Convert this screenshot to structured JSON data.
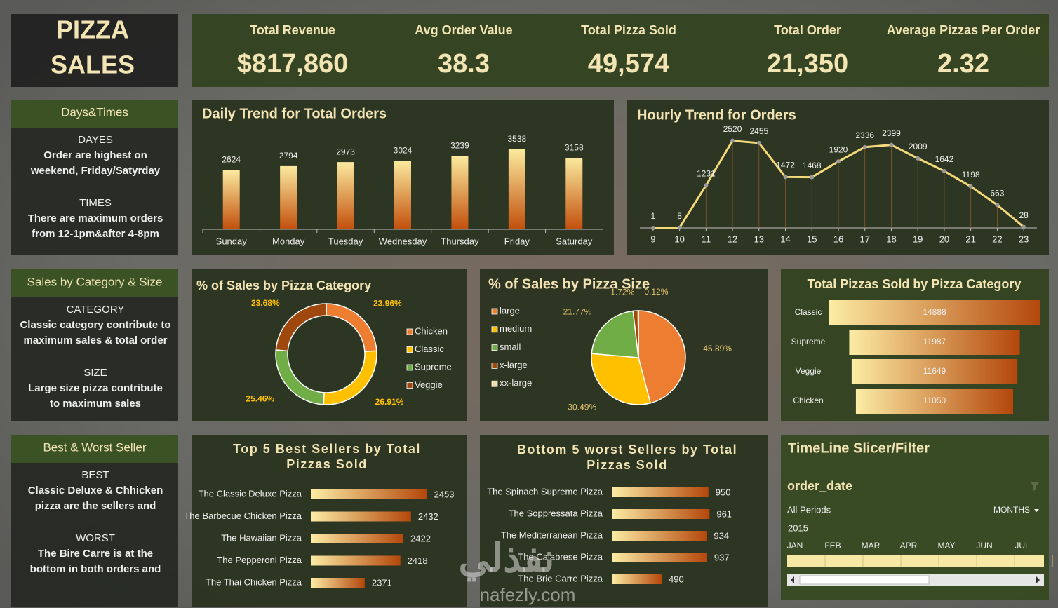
{
  "header": {
    "title_lines": [
      "PIZZA",
      "SALES"
    ]
  },
  "kpis": [
    {
      "label": "Total Revenue",
      "value": "$817,860"
    },
    {
      "label": "Avg Order Value",
      "value": "38.3"
    },
    {
      "label": "Total Pizza Sold",
      "value": "49,574"
    },
    {
      "label": "Total Order",
      "value": "21,350"
    },
    {
      "label": "Average Pizzas Per Order",
      "value": "2.32"
    }
  ],
  "insights": [
    {
      "title": "Days&Times",
      "sections": [
        {
          "heading": "DAYES",
          "lines": [
            "Order are highest on",
            "weekend, Friday/Satyrday"
          ]
        },
        {
          "heading": "TIMES",
          "lines": [
            "There are maximum orders",
            "from 12-1pm&after 4-8pm"
          ]
        }
      ]
    },
    {
      "title": "Sales by Category & Size",
      "sections": [
        {
          "heading": "CATEGORY",
          "lines": [
            "Classic category contribute to",
            "maximum sales & total order"
          ]
        },
        {
          "heading": "SIZE",
          "lines": [
            "Large size pizza contribute",
            "to maximum sales"
          ]
        }
      ]
    },
    {
      "title": "Best & Worst Seller",
      "sections": [
        {
          "heading": "BEST",
          "lines": [
            "Classic Deluxe & Chhicken",
            "pizza are the sellers and"
          ]
        },
        {
          "heading": "WORST",
          "lines": [
            "The Bire Carre is at the",
            "bottom in both orders and"
          ]
        }
      ]
    }
  ],
  "timeline": {
    "title": "TimeLine Slicer/Filter",
    "field": "order_date",
    "period": "All Periods",
    "level": "MONTHS",
    "year": "2015",
    "months": [
      "JAN",
      "FEB",
      "MAR",
      "APR",
      "MAY",
      "JUN",
      "JUL"
    ]
  },
  "watermark": {
    "brand": "نفذلي",
    "site": "nafezly.com"
  },
  "chart_data": [
    {
      "type": "bar",
      "title": "Daily Trend for Total Orders",
      "categories": [
        "Sunday",
        "Monday",
        "Tuesday",
        "Wednesday",
        "Thursday",
        "Friday",
        "Saturday"
      ],
      "values": [
        2624,
        2794,
        2973,
        3024,
        3239,
        3538,
        3158
      ],
      "ylim": [
        0,
        4000
      ],
      "gradient": [
        "#fbea9e",
        "#c24f0c"
      ]
    },
    {
      "type": "line",
      "title": "Hourly Trend for Orders",
      "x": [
        9,
        10,
        11,
        12,
        13,
        14,
        15,
        16,
        17,
        18,
        19,
        20,
        21,
        22,
        23
      ],
      "values": [
        1,
        8,
        1231,
        2520,
        2455,
        1472,
        1468,
        1920,
        2336,
        2399,
        2009,
        1642,
        1198,
        663,
        28
      ],
      "xlim": [
        8.5,
        23.5
      ],
      "xticks": [
        9,
        10,
        11,
        12,
        13,
        14,
        15,
        16,
        17,
        18,
        19,
        20,
        21,
        22,
        23
      ],
      "ylim": [
        0,
        3000
      ],
      "color": "#f4d97a"
    },
    {
      "type": "donut",
      "title": "% of Sales by Pizza Category",
      "categories": [
        "Chicken",
        "Classic",
        "Supreme",
        "Veggie"
      ],
      "values": [
        23.96,
        26.91,
        25.46,
        23.68
      ],
      "value_labels": [
        "23.96%",
        "26.91%",
        "25.46%",
        "23.68%"
      ],
      "colors": [
        "#ed7d31",
        "#ffc000",
        "#70ad47",
        "#9e480e"
      ]
    },
    {
      "type": "pie",
      "title": "% of Sales by Pizza Size",
      "categories": [
        "large",
        "medium",
        "small",
        "x-large",
        "xx-large"
      ],
      "values": [
        45.89,
        30.49,
        21.77,
        1.72,
        0.12
      ],
      "value_labels": [
        "45.89%",
        "30.49%",
        "21.77%",
        "1.72%",
        "0.12%"
      ],
      "colors": [
        "#ed7d31",
        "#ffc000",
        "#70ad47",
        "#9e480e",
        "#f2e0a8"
      ]
    },
    {
      "type": "funnel",
      "title": "Total Pizzas Sold by Pizza Category",
      "categories": [
        "Classic",
        "Supreme",
        "Veggie",
        "Chicken"
      ],
      "values": [
        14888,
        11987,
        11649,
        11050
      ],
      "gradient": [
        "#b4470b",
        "#fcec a4"
      ]
    },
    {
      "type": "hbar",
      "title": [
        "Top 5 Best Sellers by Total",
        "Pizzas Sold"
      ],
      "categories": [
        "The Classic Deluxe Pizza",
        "The Barbecue Chicken Pizza",
        "The Hawaiian Pizza",
        "The Pepperoni Pizza",
        "The Thai Chicken Pizza"
      ],
      "values": [
        2453,
        2432,
        2422,
        2418,
        2371
      ],
      "xlim": [
        2300,
        2470
      ],
      "gradient": [
        "#b4470b",
        "#fcec a4"
      ]
    },
    {
      "type": "hbar",
      "title": [
        "Bottom 5 worst  Sellers by Total",
        "Pizzas Sold"
      ],
      "categories": [
        "The Spinach Supreme Pizza",
        "The Soppressata Pizza",
        "The Mediterranean Pizza",
        "The Calabrese Pizza",
        "The Brie Carre Pizza"
      ],
      "values": [
        950,
        961,
        934,
        937,
        490
      ],
      "xlim": [
        0,
        1000
      ],
      "gradient": [
        "#b4470b",
        "#fcec a4"
      ]
    }
  ]
}
